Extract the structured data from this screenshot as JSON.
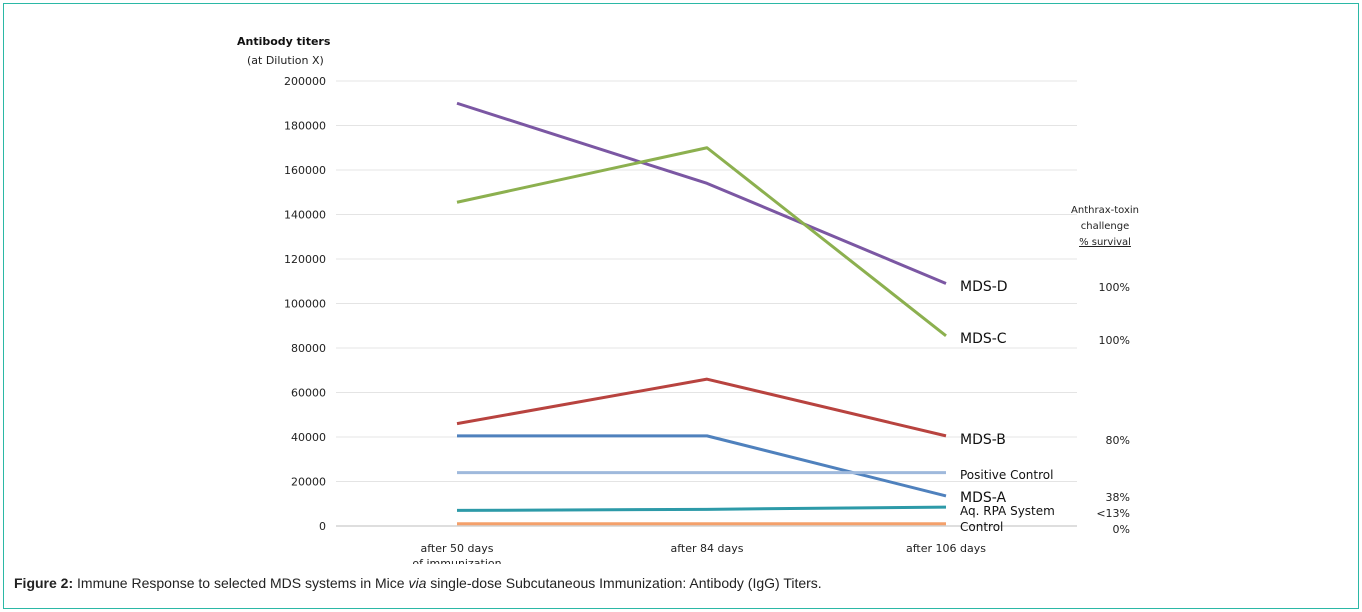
{
  "chart_data": {
    "type": "line",
    "ylabel": "Antibody titers",
    "ylabel_sub": "(at Dilution X)",
    "ylim": [
      0,
      200000
    ],
    "yticks": [
      0,
      20000,
      40000,
      60000,
      80000,
      100000,
      120000,
      140000,
      160000,
      180000,
      200000
    ],
    "grid": true,
    "categories": [
      [
        "after 50 days",
        "of immunization"
      ],
      [
        "after 84 days"
      ],
      [
        "after 106 days"
      ]
    ],
    "series": [
      {
        "name": "MDS-D",
        "color": "#7b57a3",
        "values": [
          190000,
          154000,
          109000
        ]
      },
      {
        "name": "MDS-C",
        "color": "#8cb04f",
        "values": [
          145500,
          170000,
          85500
        ]
      },
      {
        "name": "MDS-B",
        "color": "#b8433f",
        "values": [
          46000,
          66000,
          40500
        ]
      },
      {
        "name": "MDS-A",
        "color": "#4f81bd",
        "values": [
          40500,
          40500,
          13500
        ]
      },
      {
        "name": "Positive Control",
        "color": "#9fb9dc",
        "values": [
          24000,
          24000,
          24000
        ]
      },
      {
        "name": "Aq. RPA System",
        "color": "#2d9aa8",
        "values": [
          7000,
          7500,
          8500
        ]
      },
      {
        "name": "Control",
        "color": "#f4a06b",
        "values": [
          1000,
          1000,
          1000
        ]
      }
    ],
    "survival_header": [
      "Anthrax-toxin",
      "challenge",
      "% survival"
    ],
    "survival": [
      {
        "series": "MDS-D",
        "value": "100%"
      },
      {
        "series": "MDS-C",
        "value": "100%"
      },
      {
        "series": "MDS-B",
        "value": "80%"
      },
      {
        "series": "MDS-A",
        "value": "38%"
      },
      {
        "series": "Aq. RPA System",
        "value": "<13%"
      },
      {
        "series": "Control",
        "value": "0%"
      }
    ]
  },
  "caption": {
    "label": "Figure 2:",
    "text_before": " Immune Response to selected MDS systems in Mice ",
    "italic": "via",
    "text_after": " single-dose Subcutaneous Immunization: Antibody (IgG) Titers."
  }
}
